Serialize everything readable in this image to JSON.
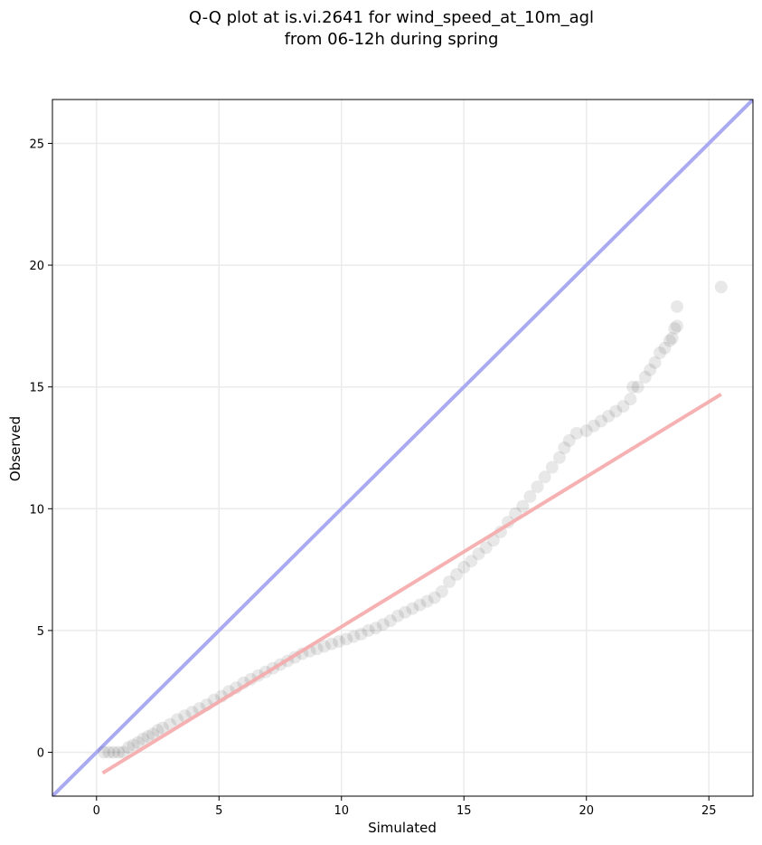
{
  "chart_data": {
    "type": "scatter",
    "title_line1": "Q-Q plot at is.vi.2641 for wind_speed_at_10m_agl",
    "title_line2": "from 06-12h during spring",
    "xlabel": "Simulated",
    "ylabel": "Observed",
    "xlim": [
      -1.8,
      26.8
    ],
    "ylim": [
      -1.8,
      26.8
    ],
    "x_ticks": [
      0,
      5,
      10,
      15,
      20,
      25
    ],
    "y_ticks": [
      0,
      5,
      10,
      15,
      20,
      25
    ],
    "grid": true,
    "colors": {
      "points": "#000000",
      "identity_line": "#aaaaf3",
      "fit_line": "#f5aaaa"
    },
    "identity_line": {
      "x": [
        -1.8,
        26.8
      ],
      "y": [
        -1.8,
        26.8
      ]
    },
    "fit_line": {
      "x": [
        0.25,
        25.5
      ],
      "y": [
        -0.85,
        14.7
      ]
    },
    "quantiles": [
      {
        "x": 0.3,
        "y": 0.0
      },
      {
        "x": 0.5,
        "y": 0.0
      },
      {
        "x": 0.7,
        "y": 0.0
      },
      {
        "x": 0.9,
        "y": 0.0
      },
      {
        "x": 1.1,
        "y": 0.0
      },
      {
        "x": 1.3,
        "y": 0.2
      },
      {
        "x": 1.5,
        "y": 0.3
      },
      {
        "x": 1.7,
        "y": 0.4
      },
      {
        "x": 1.9,
        "y": 0.55
      },
      {
        "x": 2.1,
        "y": 0.65
      },
      {
        "x": 2.3,
        "y": 0.75
      },
      {
        "x": 2.5,
        "y": 0.9
      },
      {
        "x": 2.7,
        "y": 1.0
      },
      {
        "x": 3.0,
        "y": 1.15
      },
      {
        "x": 3.3,
        "y": 1.35
      },
      {
        "x": 3.6,
        "y": 1.5
      },
      {
        "x": 3.9,
        "y": 1.65
      },
      {
        "x": 4.2,
        "y": 1.8
      },
      {
        "x": 4.5,
        "y": 1.95
      },
      {
        "x": 4.8,
        "y": 2.15
      },
      {
        "x": 5.1,
        "y": 2.3
      },
      {
        "x": 5.4,
        "y": 2.5
      },
      {
        "x": 5.7,
        "y": 2.65
      },
      {
        "x": 6.0,
        "y": 2.85
      },
      {
        "x": 6.3,
        "y": 3.0
      },
      {
        "x": 6.6,
        "y": 3.15
      },
      {
        "x": 6.9,
        "y": 3.3
      },
      {
        "x": 7.2,
        "y": 3.45
      },
      {
        "x": 7.5,
        "y": 3.6
      },
      {
        "x": 7.8,
        "y": 3.75
      },
      {
        "x": 8.1,
        "y": 3.9
      },
      {
        "x": 8.4,
        "y": 4.05
      },
      {
        "x": 8.7,
        "y": 4.15
      },
      {
        "x": 9.0,
        "y": 4.25
      },
      {
        "x": 9.3,
        "y": 4.35
      },
      {
        "x": 9.6,
        "y": 4.45
      },
      {
        "x": 9.9,
        "y": 4.55
      },
      {
        "x": 10.2,
        "y": 4.65
      },
      {
        "x": 10.5,
        "y": 4.75
      },
      {
        "x": 10.8,
        "y": 4.85
      },
      {
        "x": 11.1,
        "y": 5.0
      },
      {
        "x": 11.4,
        "y": 5.1
      },
      {
        "x": 11.7,
        "y": 5.25
      },
      {
        "x": 12.0,
        "y": 5.4
      },
      {
        "x": 12.3,
        "y": 5.6
      },
      {
        "x": 12.6,
        "y": 5.75
      },
      {
        "x": 12.9,
        "y": 5.9
      },
      {
        "x": 13.2,
        "y": 6.05
      },
      {
        "x": 13.5,
        "y": 6.2
      },
      {
        "x": 13.8,
        "y": 6.35
      },
      {
        "x": 14.1,
        "y": 6.6
      },
      {
        "x": 14.4,
        "y": 7.0
      },
      {
        "x": 14.7,
        "y": 7.3
      },
      {
        "x": 15.0,
        "y": 7.6
      },
      {
        "x": 15.3,
        "y": 7.85
      },
      {
        "x": 15.6,
        "y": 8.15
      },
      {
        "x": 15.9,
        "y": 8.4
      },
      {
        "x": 16.2,
        "y": 8.7
      },
      {
        "x": 16.5,
        "y": 9.05
      },
      {
        "x": 16.8,
        "y": 9.45
      },
      {
        "x": 17.1,
        "y": 9.8
      },
      {
        "x": 17.4,
        "y": 10.1
      },
      {
        "x": 17.7,
        "y": 10.5
      },
      {
        "x": 18.0,
        "y": 10.9
      },
      {
        "x": 18.3,
        "y": 11.3
      },
      {
        "x": 18.6,
        "y": 11.7
      },
      {
        "x": 18.9,
        "y": 12.1
      },
      {
        "x": 19.1,
        "y": 12.5
      },
      {
        "x": 19.3,
        "y": 12.8
      },
      {
        "x": 19.6,
        "y": 13.1
      },
      {
        "x": 20.0,
        "y": 13.2
      },
      {
        "x": 20.3,
        "y": 13.4
      },
      {
        "x": 20.6,
        "y": 13.6
      },
      {
        "x": 20.9,
        "y": 13.8
      },
      {
        "x": 21.2,
        "y": 14.0
      },
      {
        "x": 21.5,
        "y": 14.2
      },
      {
        "x": 21.8,
        "y": 14.5
      },
      {
        "x": 21.9,
        "y": 15.0
      },
      {
        "x": 22.1,
        "y": 15.0
      },
      {
        "x": 22.4,
        "y": 15.4
      },
      {
        "x": 22.6,
        "y": 15.7
      },
      {
        "x": 22.8,
        "y": 16.0
      },
      {
        "x": 23.0,
        "y": 16.4
      },
      {
        "x": 23.2,
        "y": 16.6
      },
      {
        "x": 23.4,
        "y": 16.9
      },
      {
        "x": 23.5,
        "y": 17.0
      },
      {
        "x": 23.6,
        "y": 17.4
      },
      {
        "x": 23.7,
        "y": 17.5
      },
      {
        "x": 23.7,
        "y": 18.3
      },
      {
        "x": 25.5,
        "y": 19.1
      }
    ]
  }
}
